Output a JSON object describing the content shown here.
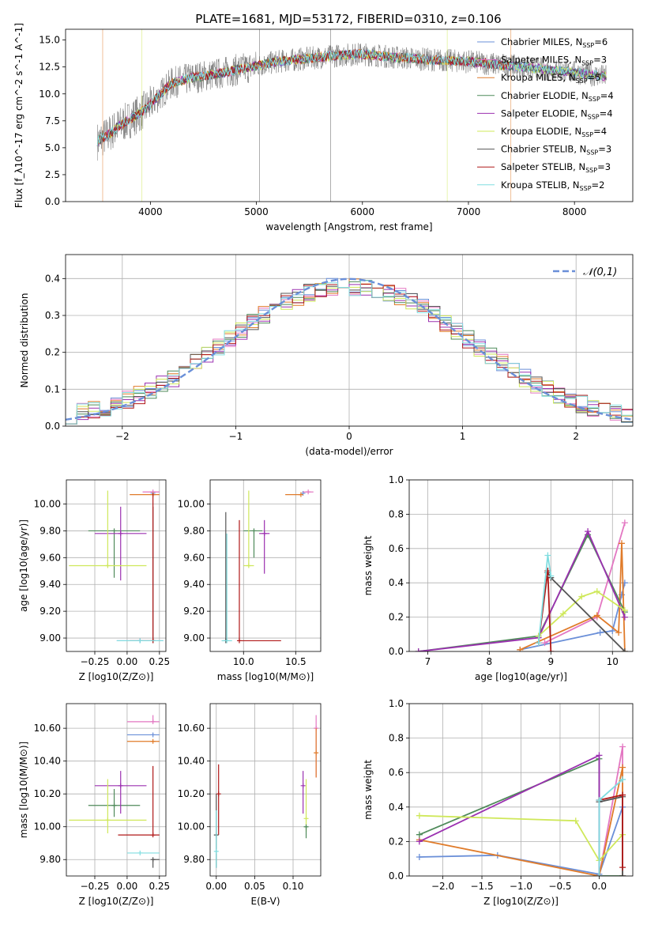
{
  "figure": {
    "title": "PLATE=1681, MJD=53172, FIBERID=0310, z=0.106"
  },
  "colors": {
    "Chabrier MILES": "#6a8fd8",
    "Salpeter MILES": "#e377c2",
    "Kroupa MILES": "#e07b2a",
    "Chabrier ELODIE": "#4f8a5a",
    "Salpeter ELODIE": "#9b30b0",
    "Kroupa ELODIE": "#cfe85a",
    "Chabrier STELIB": "#555555",
    "Salpeter STELIB": "#b01818",
    "Kroupa STELIB": "#80dde0"
  },
  "chart_data": [
    {
      "id": "spectrum",
      "type": "line",
      "xlabel": "wavelength [Angstrom, rest frame]",
      "ylabel": "Flux [f_λ10^-17 erg cm^-2 s^-1 A^-1]",
      "xlim": [
        3200,
        8550
      ],
      "ylim": [
        0,
        16
      ],
      "xticks": [
        4000,
        5000,
        6000,
        7000,
        8000
      ],
      "yticks": [
        0.0,
        2.5,
        5.0,
        7.5,
        10.0,
        12.5,
        15.0
      ],
      "data_range": [
        3500,
        8300
      ],
      "continuum": {
        "x": [
          3500,
          3600,
          3700,
          3800,
          3900,
          4000,
          4100,
          4200,
          4400,
          4600,
          4800,
          5000,
          5200,
          5500,
          5800,
          6000,
          6300,
          6600,
          7000,
          7400,
          7800,
          8000,
          8300
        ],
        "y": [
          5.6,
          6.2,
          7.0,
          7.6,
          8.2,
          9.0,
          10.0,
          11.0,
          11.5,
          11.8,
          12.2,
          12.6,
          13.0,
          13.3,
          13.6,
          13.7,
          13.4,
          13.2,
          13.0,
          12.6,
          12.2,
          12.0,
          11.6
        ]
      },
      "legend": [
        "Chabrier MILES, N_SSP=6",
        "Salpeter MILES, N_SSP=3",
        "Kroupa MILES, N_SSP=5",
        "Chabrier ELODIE, N_SSP=4",
        "Salpeter ELODIE, N_SSP=4",
        "Kroupa ELODIE, N_SSP=4",
        "Chabrier STELIB, N_SSP=3",
        "Salpeter STELIB, N_SSP=3",
        "Kroupa STELIB, N_SSP=2"
      ],
      "legend_placement": "top-right",
      "grid": false
    },
    {
      "id": "residuals",
      "type": "line",
      "xlabel": "(data-model)/error",
      "ylabel": "Normed distribution",
      "xlim": [
        -2.5,
        2.5
      ],
      "ylim": [
        0,
        0.465
      ],
      "xticks": [
        -2,
        -1,
        0,
        1,
        2
      ],
      "yticks": [
        0.0,
        0.1,
        0.2,
        0.3,
        0.4
      ],
      "legend": [
        "𝒩(0,1)"
      ],
      "legend_placement": "top-right",
      "grid": true,
      "bin_width": 0.1,
      "gaussian": {
        "mean": 0,
        "sigma": 1
      }
    },
    {
      "id": "age_vs_Z",
      "type": "scatter",
      "xlabel": "Z [log10(Z/Z⊙)]",
      "ylabel": "age  [log10(age/yr)]",
      "xlim": [
        -0.47,
        0.3
      ],
      "ylim": [
        8.9,
        10.18
      ],
      "xticks": [
        -0.25,
        0.0,
        0.25
      ],
      "yticks": [
        9.0,
        9.2,
        9.4,
        9.6,
        9.8,
        10.0
      ],
      "grid": true,
      "points": [
        {
          "model": "Chabrier MILES",
          "x": 0.1,
          "y": 8.98,
          "xerr": [
            0.18,
            0.18
          ],
          "yerr": [
            0.0,
            0.0
          ]
        },
        {
          "model": "Chabrier MILES",
          "x": 0.2,
          "y": 10.08,
          "xerr": [
            0.0,
            0.0
          ],
          "yerr": [
            0.0,
            0.0
          ]
        },
        {
          "model": "Salpeter MILES",
          "x": 0.2,
          "y": 10.09,
          "xerr": [
            0.08,
            0.05
          ],
          "yerr": [
            0.0,
            0.0
          ]
        },
        {
          "model": "Kroupa MILES",
          "x": 0.2,
          "y": 10.07,
          "xerr": [
            0.18,
            0.05
          ],
          "yerr": [
            0.0,
            0.0
          ]
        },
        {
          "model": "Chabrier ELODIE",
          "x": -0.1,
          "y": 9.8,
          "xerr": [
            0.2,
            0.2
          ],
          "yerr": [
            0.35,
            0.0
          ]
        },
        {
          "model": "Salpeter ELODIE",
          "x": -0.05,
          "y": 9.78,
          "xerr": [
            0.2,
            0.2
          ],
          "yerr": [
            0.35,
            0.2
          ]
        },
        {
          "model": "Kroupa ELODIE",
          "x": -0.15,
          "y": 9.54,
          "xerr": [
            0.3,
            0.3
          ],
          "yerr": [
            0.0,
            0.56
          ]
        },
        {
          "model": "Chabrier STELIB",
          "x": 0.2,
          "y": 8.98,
          "xerr": [
            0.0,
            0.0
          ],
          "yerr": [
            0.0,
            1.0
          ]
        },
        {
          "model": "Salpeter STELIB",
          "x": 0.2,
          "y": 8.98,
          "xerr": [
            0.18,
            0.0
          ],
          "yerr": [
            0.0,
            1.1
          ]
        },
        {
          "model": "Kroupa STELIB",
          "x": 0.1,
          "y": 8.98,
          "xerr": [
            0.18,
            0.18
          ],
          "yerr": [
            0.0,
            0.0
          ]
        }
      ]
    },
    {
      "id": "age_vs_mass",
      "type": "scatter",
      "xlabel": "mass [log10(M/M⊙)]",
      "ylabel": "",
      "xlim": [
        9.68,
        10.74
      ],
      "ylim": [
        8.9,
        10.18
      ],
      "xticks": [
        10.0,
        10.5
      ],
      "yticks": [
        9.0,
        9.2,
        9.4,
        9.6,
        9.8,
        10.0
      ],
      "grid": true,
      "points": [
        {
          "model": "Chabrier MILES",
          "x": 10.57,
          "y": 10.08,
          "xerr": [
            0.0,
            0.0
          ],
          "yerr": [
            0.0,
            0.0
          ]
        },
        {
          "model": "Salpeter MILES",
          "x": 10.62,
          "y": 10.09,
          "xerr": [
            0.05,
            0.05
          ],
          "yerr": [
            0.0,
            0.0
          ]
        },
        {
          "model": "Kroupa MILES",
          "x": 10.55,
          "y": 10.07,
          "xerr": [
            0.15,
            0.0
          ],
          "yerr": [
            0.0,
            0.0
          ]
        },
        {
          "model": "Chabrier ELODIE",
          "x": 10.1,
          "y": 9.8,
          "xerr": [
            0.1,
            0.08
          ],
          "yerr": [
            0.2,
            0.0
          ]
        },
        {
          "model": "Salpeter ELODIE",
          "x": 10.2,
          "y": 9.78,
          "xerr": [
            0.05,
            0.05
          ],
          "yerr": [
            0.3,
            0.1
          ]
        },
        {
          "model": "Kroupa ELODIE",
          "x": 10.05,
          "y": 9.54,
          "xerr": [
            0.05,
            0.05
          ],
          "yerr": [
            0.0,
            0.56
          ]
        },
        {
          "model": "Chabrier STELIB",
          "x": 9.83,
          "y": 8.98,
          "xerr": [
            0.0,
            0.0
          ],
          "yerr": [
            0.0,
            0.96
          ]
        },
        {
          "model": "Salpeter STELIB",
          "x": 9.96,
          "y": 8.98,
          "xerr": [
            0.0,
            0.4
          ],
          "yerr": [
            0.0,
            0.9
          ]
        },
        {
          "model": "Kroupa STELIB",
          "x": 9.84,
          "y": 8.98,
          "xerr": [
            0.05,
            0.05
          ],
          "yerr": [
            0.0,
            0.8
          ]
        }
      ]
    },
    {
      "id": "massweight_vs_age",
      "type": "line",
      "xlabel": "age  [log10(age/yr)]",
      "ylabel": "mass weight",
      "xlim": [
        6.7,
        10.33
      ],
      "ylim": [
        0,
        1.0
      ],
      "xticks": [
        7,
        8,
        9,
        10
      ],
      "yticks": [
        0.0,
        0.2,
        0.4,
        0.6,
        0.8,
        1.0
      ],
      "grid": true,
      "series": [
        {
          "model": "Chabrier MILES",
          "x": [
            8.5,
            9.8,
            10.0,
            10.15,
            10.2
          ],
          "y": [
            0.01,
            0.11,
            0.12,
            0.33,
            0.4
          ]
        },
        {
          "model": "Salpeter MILES",
          "x": [
            8.9,
            9.75,
            10.2
          ],
          "y": [
            0.05,
            0.2,
            0.75
          ]
        },
        {
          "model": "Kroupa MILES",
          "x": [
            8.5,
            9.75,
            10.1,
            10.15,
            10.2
          ],
          "y": [
            0.01,
            0.21,
            0.11,
            0.63,
            0.0
          ]
        },
        {
          "model": "Chabrier ELODIE",
          "x": [
            6.85,
            8.8,
            9.6,
            10.2
          ],
          "y": [
            0.0,
            0.09,
            0.68,
            0.23
          ]
        },
        {
          "model": "Salpeter ELODIE",
          "x": [
            6.85,
            8.8,
            9.6,
            10.2
          ],
          "y": [
            0.0,
            0.08,
            0.7,
            0.2
          ]
        },
        {
          "model": "Kroupa ELODIE",
          "x": [
            8.8,
            9.2,
            9.5,
            9.75,
            10.2
          ],
          "y": [
            0.09,
            0.22,
            0.32,
            0.35,
            0.24
          ]
        },
        {
          "model": "Chabrier STELIB",
          "x": [
            8.95,
            9.0,
            10.2
          ],
          "y": [
            0.46,
            0.43,
            0.0
          ]
        },
        {
          "model": "Salpeter STELIB",
          "x": [
            8.8,
            8.95,
            9.0
          ],
          "y": [
            0.05,
            0.47,
            0.0
          ]
        },
        {
          "model": "Kroupa STELIB",
          "x": [
            8.8,
            8.95,
            9.0
          ],
          "y": [
            0.05,
            0.56,
            0.44
          ]
        }
      ]
    },
    {
      "id": "mass_vs_Z",
      "type": "scatter",
      "xlabel": "Z [log10(Z/Z⊙)]",
      "ylabel": "mass [log10(M/M⊙)]",
      "xlim": [
        -0.47,
        0.3
      ],
      "ylim": [
        9.7,
        10.75
      ],
      "xticks": [
        -0.25,
        0.0,
        0.25
      ],
      "yticks": [
        9.8,
        10.0,
        10.2,
        10.4,
        10.6
      ],
      "grid": true,
      "points": [
        {
          "model": "Chabrier MILES",
          "x": 0.2,
          "y": 10.56,
          "xerr": [
            0.2,
            0.05
          ],
          "yerr": [
            0.0,
            0.0
          ]
        },
        {
          "model": "Salpeter MILES",
          "x": 0.2,
          "y": 10.64,
          "xerr": [
            0.2,
            0.05
          ],
          "yerr": [
            0.0,
            0.04
          ]
        },
        {
          "model": "Kroupa MILES",
          "x": 0.2,
          "y": 10.52,
          "xerr": [
            0.2,
            0.05
          ],
          "yerr": [
            0.0,
            0.0
          ]
        },
        {
          "model": "Chabrier ELODIE",
          "x": -0.1,
          "y": 10.13,
          "xerr": [
            0.2,
            0.2
          ],
          "yerr": [
            0.07,
            0.1
          ]
        },
        {
          "model": "Salpeter ELODIE",
          "x": -0.05,
          "y": 10.25,
          "xerr": [
            0.2,
            0.2
          ],
          "yerr": [
            0.17,
            0.09
          ]
        },
        {
          "model": "Kroupa ELODIE",
          "x": -0.15,
          "y": 10.04,
          "xerr": [
            0.3,
            0.3
          ],
          "yerr": [
            0.08,
            0.25
          ]
        },
        {
          "model": "Chabrier STELIB",
          "x": 0.2,
          "y": 9.8,
          "xerr": [
            0.0,
            0.05
          ],
          "yerr": [
            0.05,
            0.0
          ]
        },
        {
          "model": "Salpeter STELIB",
          "x": 0.2,
          "y": 9.95,
          "xerr": [
            0.27,
            0.05
          ],
          "yerr": [
            0.0,
            0.42
          ]
        },
        {
          "model": "Kroupa STELIB",
          "x": 0.1,
          "y": 9.84,
          "xerr": [
            0.1,
            0.15
          ],
          "yerr": [
            0.0,
            0.0
          ]
        }
      ]
    },
    {
      "id": "mass_vs_ebv",
      "type": "scatter",
      "xlabel": "E(B-V)",
      "ylabel": "",
      "xlim": [
        -0.008,
        0.136
      ],
      "ylim": [
        9.7,
        10.75
      ],
      "xticks": [
        0.0,
        0.05,
        0.1
      ],
      "yticks": [
        9.8,
        10.0,
        10.2,
        10.4,
        10.6
      ],
      "grid": true,
      "points": [
        {
          "model": "Salpeter MILES",
          "x": 0.13,
          "y": 10.6,
          "xerr": [
            0,
            0
          ],
          "yerr": [
            0.3,
            0.08
          ]
        },
        {
          "model": "Kroupa MILES",
          "x": 0.13,
          "y": 10.45,
          "xerr": [
            0,
            0
          ],
          "yerr": [
            0.15,
            0.15
          ]
        },
        {
          "model": "Salpeter ELODIE",
          "x": 0.113,
          "y": 10.25,
          "xerr": [
            0,
            0
          ],
          "yerr": [
            0.17,
            0.09
          ]
        },
        {
          "model": "Kroupa ELODIE",
          "x": 0.117,
          "y": 10.05,
          "xerr": [
            0,
            0
          ],
          "yerr": [
            0.08,
            0.24
          ]
        },
        {
          "model": "Chabrier ELODIE",
          "x": 0.117,
          "y": 10.0,
          "xerr": [
            0,
            0
          ],
          "yerr": [
            0.07,
            0.0
          ]
        },
        {
          "model": "Salpeter STELIB",
          "x": 0.003,
          "y": 10.2,
          "xerr": [
            0,
            0
          ],
          "yerr": [
            0.25,
            0.18
          ]
        },
        {
          "model": "Chabrier STELIB",
          "x": 0.0,
          "y": 9.95,
          "xerr": [
            0,
            0
          ],
          "yerr": [
            0.2,
            0.25
          ]
        },
        {
          "model": "Kroupa STELIB",
          "x": 0.0,
          "y": 9.85,
          "xerr": [
            0,
            0
          ],
          "yerr": [
            0.1,
            0.25
          ]
        }
      ]
    },
    {
      "id": "massweight_vs_Z",
      "type": "line",
      "xlabel": "Z [log10(Z/Z⊙)]",
      "ylabel": "mass weight",
      "xlim": [
        -2.43,
        0.43
      ],
      "ylim": [
        0,
        1.0
      ],
      "xticks": [
        -2.0,
        -1.5,
        -1.0,
        -0.5,
        0.0
      ],
      "yticks": [
        0.0,
        0.2,
        0.4,
        0.6,
        0.8,
        1.0
      ],
      "grid": true,
      "series": [
        {
          "model": "Chabrier MILES",
          "x": [
            -2.3,
            -1.3,
            0.0,
            0.3,
            0.3
          ],
          "y": [
            0.11,
            0.12,
            0.01,
            0.4,
            0.0
          ]
        },
        {
          "model": "Salpeter MILES",
          "x": [
            0.0,
            0.3,
            0.3
          ],
          "y": [
            0.0,
            0.75,
            0.0
          ]
        },
        {
          "model": "Kroupa MILES",
          "x": [
            -2.3,
            0.0,
            0.3,
            0.3
          ],
          "y": [
            0.21,
            0.0,
            0.63,
            0.0
          ]
        },
        {
          "model": "Chabrier ELODIE",
          "x": [
            -2.3,
            0.0,
            0.0,
            0.3
          ],
          "y": [
            0.24,
            0.68,
            0.0,
            0.0
          ]
        },
        {
          "model": "Salpeter ELODIE",
          "x": [
            -2.3,
            0.0,
            0.0
          ],
          "y": [
            0.2,
            0.7,
            0.0
          ]
        },
        {
          "model": "Kroupa ELODIE",
          "x": [
            -2.3,
            -0.3,
            0.0,
            0.3
          ],
          "y": [
            0.35,
            0.32,
            0.09,
            0.24
          ]
        },
        {
          "model": "Chabrier STELIB",
          "x": [
            0.0,
            0.3,
            0.3
          ],
          "y": [
            0.43,
            0.46,
            0.0
          ]
        },
        {
          "model": "Salpeter STELIB",
          "x": [
            0.0,
            0.3,
            0.3
          ],
          "y": [
            0.44,
            0.47,
            0.05
          ]
        },
        {
          "model": "Kroupa STELIB",
          "x": [
            0.0,
            0.0,
            0.3
          ],
          "y": [
            0.0,
            0.44,
            0.56
          ]
        }
      ]
    }
  ]
}
